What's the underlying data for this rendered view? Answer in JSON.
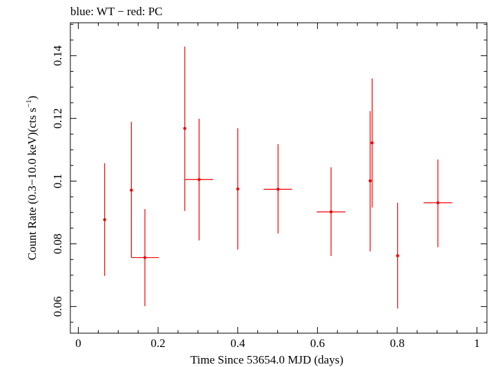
{
  "chart_data": {
    "type": "scatter",
    "title": "blue: WT − red: PC",
    "xlabel": "Time Since 53654.0 MJD (days)",
    "ylabel_main": "Count Rate (0.3−10.0 keV)(cts s",
    "ylabel_sup": "−1",
    "ylabel_end": ")",
    "xlim": [
      -0.02,
      1.025
    ],
    "ylim": [
      0.0515,
      0.1505
    ],
    "xticks": [
      0,
      0.2,
      0.4,
      0.6,
      0.8,
      1
    ],
    "xtick_labels": [
      "0",
      "0.2",
      "0.4",
      "0.6",
      "0.8",
      "1"
    ],
    "yticks": [
      0.06,
      0.08,
      0.1,
      0.12,
      0.14
    ],
    "ytick_labels": [
      "0.06",
      "0.08",
      "0.1",
      "0.12",
      "0.14"
    ],
    "grid": false,
    "series": [
      {
        "color": "#ee0000",
        "points": [
          {
            "x": 0.066,
            "xlo": 0.066,
            "xhi": 0.066,
            "y": 0.0877,
            "ylo": 0.0698,
            "yhi": 0.1057
          },
          {
            "x": 0.133,
            "xlo": 0.133,
            "xhi": 0.133,
            "y": 0.0971,
            "ylo": 0.0756,
            "yhi": 0.1189
          },
          {
            "x": 0.167,
            "xlo": 0.133,
            "xhi": 0.202,
            "y": 0.0756,
            "ylo": 0.0601,
            "yhi": 0.0911
          },
          {
            "x": 0.267,
            "xlo": 0.267,
            "xhi": 0.267,
            "y": 0.1168,
            "ylo": 0.0905,
            "yhi": 0.1429
          },
          {
            "x": 0.303,
            "xlo": 0.268,
            "xhi": 0.338,
            "y": 0.1005,
            "ylo": 0.0811,
            "yhi": 0.1199
          },
          {
            "x": 0.4,
            "xlo": 0.4,
            "xhi": 0.4,
            "y": 0.0975,
            "ylo": 0.0782,
            "yhi": 0.1169
          },
          {
            "x": 0.501,
            "xlo": 0.465,
            "xhi": 0.536,
            "y": 0.0974,
            "ylo": 0.0833,
            "yhi": 0.1118
          },
          {
            "x": 0.634,
            "xlo": 0.598,
            "xhi": 0.67,
            "y": 0.0902,
            "ylo": 0.0761,
            "yhi": 0.1044
          },
          {
            "x": 0.732,
            "xlo": 0.732,
            "xhi": 0.732,
            "y": 0.1001,
            "ylo": 0.0776,
            "yhi": 0.1223
          },
          {
            "x": 0.737,
            "xlo": 0.737,
            "xhi": 0.737,
            "y": 0.1122,
            "ylo": 0.0916,
            "yhi": 0.1328
          },
          {
            "x": 0.801,
            "xlo": 0.801,
            "xhi": 0.801,
            "y": 0.0762,
            "ylo": 0.0594,
            "yhi": 0.0931
          },
          {
            "x": 0.902,
            "xlo": 0.866,
            "xhi": 0.938,
            "y": 0.0931,
            "ylo": 0.0789,
            "yhi": 0.1069
          }
        ]
      }
    ]
  }
}
